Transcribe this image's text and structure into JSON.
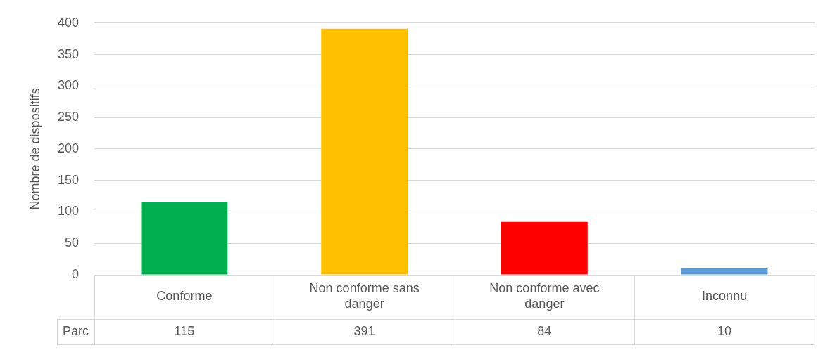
{
  "chart_data": {
    "type": "bar",
    "ylabel": "Nombre de dispositifs",
    "categories": [
      "Conforme",
      "Non conforme sans danger",
      "Non conforme avec danger",
      "Inconnu"
    ],
    "series": [
      {
        "name": "Parc",
        "colors": [
          "#00b050",
          "#ffc000",
          "#ff0000",
          "#5b9bd5"
        ],
        "values": [
          115,
          391,
          84,
          10
        ]
      }
    ],
    "ylim": [
      0,
      400
    ],
    "yticks": [
      0,
      50,
      100,
      150,
      200,
      250,
      300,
      350,
      400
    ],
    "grid": "y",
    "legend": false,
    "data_labels": true
  }
}
